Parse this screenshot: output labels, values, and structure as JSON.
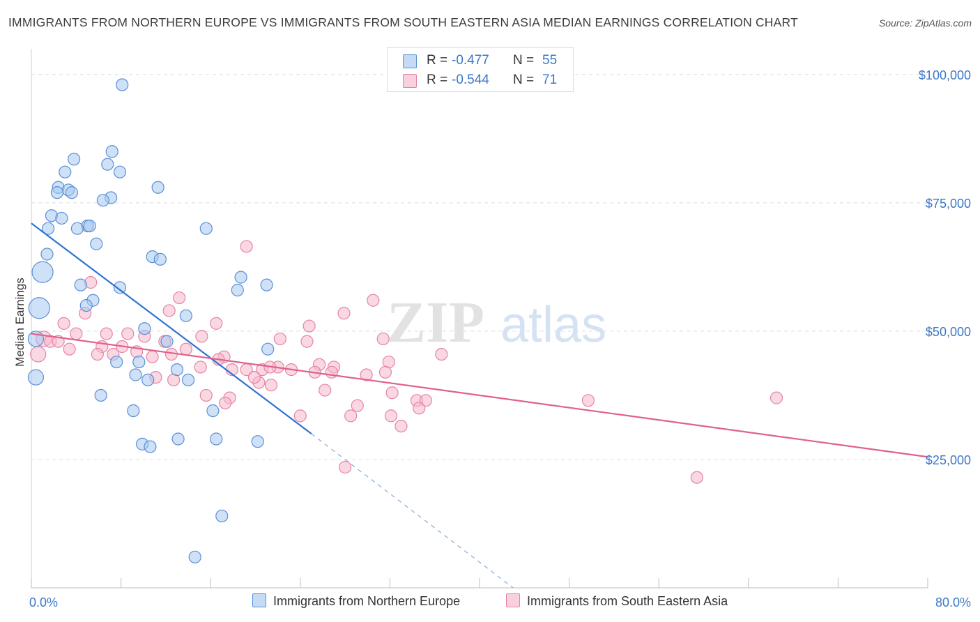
{
  "title": "IMMIGRANTS FROM NORTHERN EUROPE VS IMMIGRANTS FROM SOUTH EASTERN ASIA MEDIAN EARNINGS CORRELATION CHART",
  "source": "Source: ZipAtlas.com",
  "watermark": {
    "zip": "ZIP",
    "atlas": "atlas"
  },
  "legend": {
    "series1": {
      "r_label": "R =",
      "r_value": "-0.477",
      "n_label": "N =",
      "n_value": "55",
      "color": "#a8c8f0"
    },
    "series2": {
      "r_label": "R =",
      "r_value": "-0.544",
      "n_label": "N =",
      "n_value": "71",
      "color": "#f5b8cb"
    }
  },
  "bottom_legend": {
    "series1": "Immigrants from Northern Europe",
    "series2": "Immigrants from South Eastern Asia"
  },
  "chart_data": {
    "type": "scatter",
    "title": "IMMIGRANTS FROM NORTHERN EUROPE VS IMMIGRANTS FROM SOUTH EASTERN ASIA MEDIAN EARNINGS CORRELATION CHART",
    "xlabel": "",
    "ylabel": "Median Earnings",
    "xlim": [
      0,
      80
    ],
    "ylim": [
      0,
      105000
    ],
    "x_tick_labels": [
      "0.0%",
      "80.0%"
    ],
    "x_minor_ticks": [
      0,
      8,
      16,
      24,
      32,
      40,
      48,
      56,
      64,
      72,
      80
    ],
    "y_ticks": [
      25000,
      50000,
      75000,
      100000
    ],
    "y_tick_labels": [
      "$25,000",
      "$50,000",
      "$75,000",
      "$100,000"
    ],
    "grid": true,
    "colors": {
      "blue_fill": "#a8c8f0",
      "blue_stroke": "#5a8fd6",
      "blue_line": "#2f72d0",
      "pink_fill": "#f5b8cb",
      "pink_stroke": "#e584a5",
      "pink_line": "#e0608c",
      "tick_label": "#3a78c9",
      "grid": "#dedede"
    },
    "series": [
      {
        "name": "Immigrants from Northern Europe",
        "r": -0.477,
        "n": 55,
        "trend": {
          "x": [
            0,
            25
          ],
          "y": [
            71000,
            30000
          ],
          "dashed_to": [
            43,
            0
          ]
        },
        "points": [
          [
            8.1,
            98000
          ],
          [
            7.2,
            85000
          ],
          [
            6.8,
            82500
          ],
          [
            3.8,
            83500
          ],
          [
            7.9,
            81000
          ],
          [
            3.0,
            81000
          ],
          [
            11.3,
            78000
          ],
          [
            2.4,
            78000
          ],
          [
            3.3,
            77500
          ],
          [
            2.3,
            77000
          ],
          [
            3.6,
            77000
          ],
          [
            7.1,
            76000
          ],
          [
            6.4,
            75500
          ],
          [
            1.8,
            72500
          ],
          [
            2.7,
            72000
          ],
          [
            5.0,
            70500
          ],
          [
            5.2,
            70500
          ],
          [
            1.5,
            70000
          ],
          [
            4.1,
            70000
          ],
          [
            15.6,
            70000
          ],
          [
            5.8,
            67000
          ],
          [
            1.4,
            65000
          ],
          [
            10.8,
            64500
          ],
          [
            11.5,
            64000
          ],
          [
            1.0,
            61500
          ],
          [
            18.7,
            60500
          ],
          [
            7.9,
            58500
          ],
          [
            21.0,
            59000
          ],
          [
            4.4,
            59000
          ],
          [
            18.4,
            58000
          ],
          [
            0.7,
            54500
          ],
          [
            5.5,
            56000
          ],
          [
            4.9,
            55000
          ],
          [
            13.8,
            53000
          ],
          [
            10.1,
            50500
          ],
          [
            0.4,
            48500
          ],
          [
            12.1,
            48000
          ],
          [
            21.1,
            46500
          ],
          [
            9.6,
            44000
          ],
          [
            7.6,
            44000
          ],
          [
            13.0,
            42500
          ],
          [
            9.3,
            41500
          ],
          [
            10.4,
            40500
          ],
          [
            14.0,
            40500
          ],
          [
            0.4,
            41000
          ],
          [
            6.2,
            37500
          ],
          [
            9.1,
            34500
          ],
          [
            16.2,
            34500
          ],
          [
            13.1,
            29000
          ],
          [
            16.5,
            29000
          ],
          [
            20.2,
            28500
          ],
          [
            9.9,
            28000
          ],
          [
            10.6,
            27500
          ],
          [
            17.0,
            14000
          ],
          [
            14.6,
            6000
          ]
        ]
      },
      {
        "name": "Immigrants from South Eastern Asia",
        "r": -0.544,
        "n": 71,
        "trend": {
          "x": [
            0,
            80
          ],
          "y": [
            49500,
            25500
          ]
        },
        "points": [
          [
            19.2,
            66500
          ],
          [
            30.5,
            56000
          ],
          [
            13.2,
            56500
          ],
          [
            5.3,
            59500
          ],
          [
            4.8,
            53500
          ],
          [
            12.3,
            54000
          ],
          [
            27.9,
            53500
          ],
          [
            2.9,
            51500
          ],
          [
            16.5,
            51500
          ],
          [
            24.8,
            51000
          ],
          [
            1.1,
            48500
          ],
          [
            1.7,
            48000
          ],
          [
            4.0,
            49500
          ],
          [
            2.4,
            48000
          ],
          [
            6.7,
            49500
          ],
          [
            8.6,
            49500
          ],
          [
            15.2,
            49000
          ],
          [
            10.1,
            49000
          ],
          [
            22.2,
            48500
          ],
          [
            6.3,
            47000
          ],
          [
            11.9,
            48000
          ],
          [
            24.6,
            48000
          ],
          [
            31.4,
            48500
          ],
          [
            3.4,
            46500
          ],
          [
            8.1,
            47000
          ],
          [
            13.8,
            46500
          ],
          [
            9.4,
            46000
          ],
          [
            5.9,
            45500
          ],
          [
            7.3,
            45500
          ],
          [
            10.8,
            45000
          ],
          [
            17.2,
            45000
          ],
          [
            12.5,
            45500
          ],
          [
            16.7,
            44500
          ],
          [
            36.6,
            45500
          ],
          [
            31.9,
            44000
          ],
          [
            22.0,
            43000
          ],
          [
            15.1,
            43000
          ],
          [
            25.7,
            43500
          ],
          [
            27.0,
            43000
          ],
          [
            20.6,
            42500
          ],
          [
            23.2,
            42500
          ],
          [
            19.2,
            42500
          ],
          [
            25.3,
            42000
          ],
          [
            17.9,
            42500
          ],
          [
            26.8,
            42000
          ],
          [
            11.1,
            41000
          ],
          [
            29.9,
            41500
          ],
          [
            12.7,
            40500
          ],
          [
            20.3,
            40000
          ],
          [
            19.9,
            41000
          ],
          [
            21.4,
            39500
          ],
          [
            26.2,
            38500
          ],
          [
            32.2,
            38000
          ],
          [
            34.4,
            36500
          ],
          [
            35.2,
            36500
          ],
          [
            17.7,
            37000
          ],
          [
            15.6,
            37500
          ],
          [
            49.7,
            36500
          ],
          [
            66.5,
            37000
          ],
          [
            17.3,
            36000
          ],
          [
            32.1,
            33500
          ],
          [
            29.1,
            35500
          ],
          [
            28.5,
            33500
          ],
          [
            34.6,
            35000
          ],
          [
            33.0,
            31500
          ],
          [
            24.0,
            33500
          ],
          [
            28.0,
            23500
          ],
          [
            59.4,
            21500
          ],
          [
            0.6,
            45500
          ],
          [
            21.3,
            43000
          ],
          [
            31.6,
            42000
          ]
        ]
      }
    ]
  }
}
